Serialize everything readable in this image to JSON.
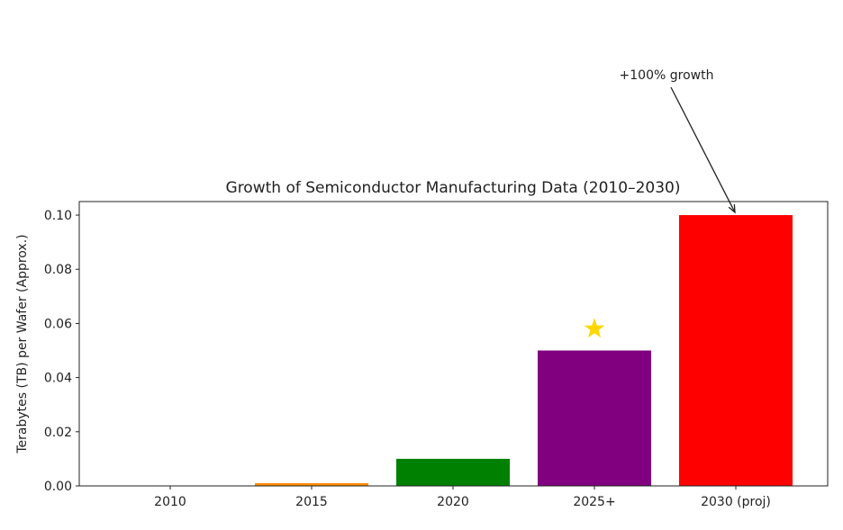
{
  "chart_data": {
    "type": "bar",
    "title": "Growth of Semiconductor Manufacturing Data (2010–2030)",
    "xlabel": "",
    "ylabel": "Terabytes (TB) per Wafer (Approx.)",
    "categories": [
      "2010",
      "2015",
      "2020",
      "2025+",
      "2030 (proj)"
    ],
    "values": [
      0.0001,
      0.001,
      0.01,
      0.05,
      0.1
    ],
    "colors": [
      "#1f77b4",
      "#ff8c00",
      "#008000",
      "#800080",
      "#ff0000"
    ],
    "ylim": [
      0,
      0.105
    ],
    "yticks": [
      "0.00",
      "0.02",
      "0.04",
      "0.06",
      "0.08",
      "0.10"
    ],
    "grid": false,
    "star_marker": {
      "category": "2025+",
      "y": 0.058,
      "color": "#ffd700"
    },
    "annotation": {
      "text": "+100% growth",
      "target_category": "2030 (proj)",
      "target_y": 0.1
    }
  }
}
